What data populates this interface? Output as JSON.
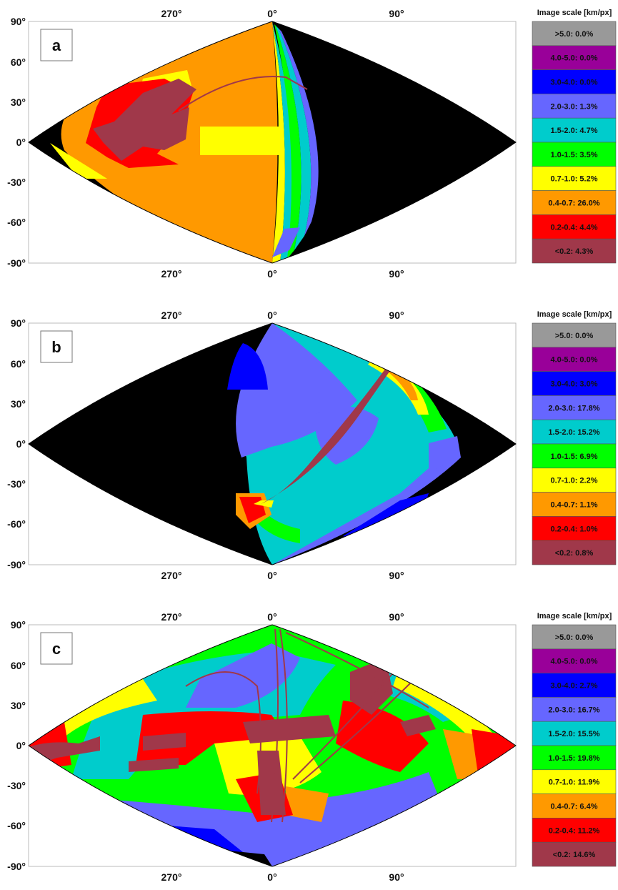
{
  "colors": {
    "black": "#000000",
    "maroon": "#a0384a",
    "red": "#ff0000",
    "orange": "#ff9900",
    "yellow": "#ffff00",
    "green": "#00ff00",
    "cyan": "#00cccc",
    "periwinkle": "#6666ff",
    "blue": "#0000ff",
    "purple": "#990099",
    "gray": "#999999"
  },
  "axes": {
    "top_ticks": [
      "270°",
      "0°",
      "90°"
    ],
    "bottom_ticks": [
      "270°",
      "0°",
      "90°"
    ],
    "lat_ticks": [
      "90°",
      "60°",
      "30°",
      "0°",
      "-30°",
      "-60°",
      "-90°"
    ]
  },
  "legend_title": "Image scale [km/px]",
  "panels": [
    {
      "letter": "a",
      "legend": [
        {
          "range": ">5.0",
          "percent": "0.0%",
          "label": ">5.0: 0.0%",
          "color": "#999999"
        },
        {
          "range": "4.0-5.0",
          "percent": "0.0%",
          "label": "4.0-5.0: 0.0%",
          "color": "#990099"
        },
        {
          "range": "3.0-4.0",
          "percent": "0.0%",
          "label": "3.0-4.0: 0.0%",
          "color": "#0000ff"
        },
        {
          "range": "2.0-3.0",
          "percent": "1.3%",
          "label": "2.0-3.0: 1.3%",
          "color": "#6666ff"
        },
        {
          "range": "1.5-2.0",
          "percent": "4.7%",
          "label": "1.5-2.0: 4.7%",
          "color": "#00cccc"
        },
        {
          "range": "1.0-1.5",
          "percent": "3.5%",
          "label": "1.0-1.5: 3.5%",
          "color": "#00ff00"
        },
        {
          "range": "0.7-1.0",
          "percent": "5.2%",
          "label": "0.7-1.0: 5.2%",
          "color": "#ffff00"
        },
        {
          "range": "0.4-0.7",
          "percent": "26.0%",
          "label": "0.4-0.7: 26.0%",
          "color": "#ff9900"
        },
        {
          "range": "0.2-0.4",
          "percent": "4.4%",
          "label": "0.2-0.4: 4.4%",
          "color": "#ff0000"
        },
        {
          "range": "<0.2",
          "percent": "4.3%",
          "label": "<0.2: 4.3%",
          "color": "#a0384a"
        }
      ]
    },
    {
      "letter": "b",
      "legend": [
        {
          "range": ">5.0",
          "percent": "0.0%",
          "label": ">5.0: 0.0%",
          "color": "#999999"
        },
        {
          "range": "4.0-5.0",
          "percent": "0.0%",
          "label": "4.0-5.0: 0.0%",
          "color": "#990099"
        },
        {
          "range": "3.0-4.0",
          "percent": "3.0%",
          "label": "3.0-4.0: 3.0%",
          "color": "#0000ff"
        },
        {
          "range": "2.0-3.0",
          "percent": "17.8%",
          "label": "2.0-3.0: 17.8%",
          "color": "#6666ff"
        },
        {
          "range": "1.5-2.0",
          "percent": "15.2%",
          "label": "1.5-2.0: 15.2%",
          "color": "#00cccc"
        },
        {
          "range": "1.0-1.5",
          "percent": "6.9%",
          "label": "1.0-1.5: 6.9%",
          "color": "#00ff00"
        },
        {
          "range": "0.7-1.0",
          "percent": "2.2%",
          "label": "0.7-1.0: 2.2%",
          "color": "#ffff00"
        },
        {
          "range": "0.4-0.7",
          "percent": "1.1%",
          "label": "0.4-0.7: 1.1%",
          "color": "#ff9900"
        },
        {
          "range": "0.2-0.4",
          "percent": "1.0%",
          "label": "0.2-0.4: 1.0%",
          "color": "#ff0000"
        },
        {
          "range": "<0.2",
          "percent": "0.8%",
          "label": "<0.2: 0.8%",
          "color": "#a0384a"
        }
      ]
    },
    {
      "letter": "c",
      "legend": [
        {
          "range": ">5.0",
          "percent": "0.0%",
          "label": ">5.0: 0.0%",
          "color": "#999999"
        },
        {
          "range": "4.0-5.0",
          "percent": "0.0%",
          "label": "4.0-5.0: 0.0%",
          "color": "#990099"
        },
        {
          "range": "3.0-4.0",
          "percent": "2.7%",
          "label": "3.0-4.0: 2.7%",
          "color": "#0000ff"
        },
        {
          "range": "2.0-3.0",
          "percent": "16.7%",
          "label": "2.0-3.0: 16.7%",
          "color": "#6666ff"
        },
        {
          "range": "1.5-2.0",
          "percent": "15.5%",
          "label": "1.5-2.0: 15.5%",
          "color": "#00cccc"
        },
        {
          "range": "1.0-1.5",
          "percent": "19.8%",
          "label": "1.0-1.5: 19.8%",
          "color": "#00ff00"
        },
        {
          "range": "0.7-1.0",
          "percent": "11.9%",
          "label": "0.7-1.0: 11.9%",
          "color": "#ffff00"
        },
        {
          "range": "0.4-0.7",
          "percent": "6.4%",
          "label": "0.4-0.7: 6.4%",
          "color": "#ff9900"
        },
        {
          "range": "0.2-0.4",
          "percent": "11.2%",
          "label": "0.2-0.4: 11.2%",
          "color": "#ff0000"
        },
        {
          "range": "<0.2",
          "percent": "14.6%",
          "label": "<0.2: 14.6%",
          "color": "#a0384a"
        }
      ]
    }
  ]
}
